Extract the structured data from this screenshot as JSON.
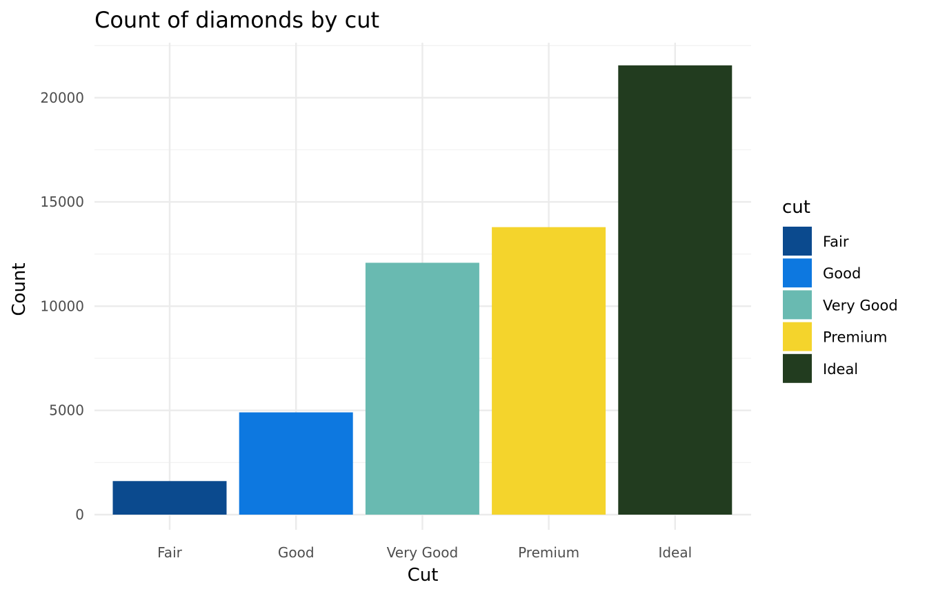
{
  "chart_data": {
    "type": "bar",
    "title": "Count of diamonds by cut",
    "xlabel": "Cut",
    "ylabel": "Count",
    "categories": [
      "Fair",
      "Good",
      "Very Good",
      "Premium",
      "Ideal"
    ],
    "values": [
      1610,
      4906,
      12082,
      13791,
      21551
    ],
    "colors": [
      "#0b4a8e",
      "#0d78e0",
      "#69bab1",
      "#f4d42c",
      "#223c1f"
    ],
    "ylim": [
      0,
      22600
    ],
    "yticks": [
      0,
      5000,
      10000,
      15000,
      20000
    ],
    "grid": true,
    "legend": {
      "title": "cut",
      "position": "right",
      "items": [
        "Fair",
        "Good",
        "Very Good",
        "Premium",
        "Ideal"
      ]
    }
  }
}
